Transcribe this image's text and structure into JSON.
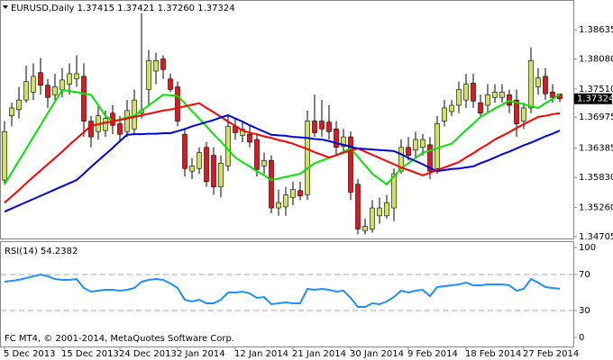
{
  "chart_data": [
    {
      "type": "candlestick",
      "title": "EURUSD,Daily  1.37415 1.37421 1.37260 1.37324",
      "categories": [
        "5 Dec 2013",
        null,
        null,
        null,
        null,
        null,
        null,
        null,
        "15 Dec 2013",
        null,
        null,
        null,
        null,
        null,
        null,
        null,
        "24 Dec 2013",
        null,
        null,
        null,
        null,
        null,
        null,
        null,
        "2 Jan 2014",
        null,
        null,
        null,
        null,
        null,
        null,
        null,
        "12 Jan 2014",
        null,
        null,
        null,
        null,
        null,
        null,
        null,
        "21 Jan 2014",
        null,
        null,
        null,
        null,
        null,
        null,
        null,
        "30 Jan 2014",
        null,
        null,
        null,
        null,
        null,
        null,
        null,
        "9 Feb 2014",
        null,
        null,
        null,
        null,
        null,
        null,
        null,
        "18 Feb 2014",
        null,
        null,
        null,
        null,
        null,
        null,
        null,
        "27 Feb 2014",
        null,
        null,
        null,
        null,
        null
      ],
      "open": [
        1.3578,
        1.37,
        1.3712,
        1.373,
        1.3745,
        1.3782,
        1.3758,
        1.374,
        1.375,
        1.376,
        1.377,
        1.3775,
        1.369,
        1.367,
        1.3672,
        1.3705,
        1.3685,
        1.367,
        1.3675,
        1.3705,
        1.375,
        1.3785,
        1.3808,
        1.377,
        1.3755,
        1.3665,
        1.3595,
        1.36,
        1.364,
        1.3625,
        1.3565,
        1.3605,
        1.368,
        1.3663,
        1.3665,
        1.3655,
        1.3605,
        1.3615,
        1.3525,
        1.3527,
        1.3545,
        1.3558,
        1.355,
        1.369,
        1.369,
        1.3688,
        1.3675,
        1.3642,
        1.366,
        1.357,
        1.3482,
        1.3485,
        1.351,
        1.351,
        1.3525,
        1.3595,
        1.364,
        1.3635,
        1.364,
        1.3645,
        1.36,
        1.369,
        1.3708,
        1.372,
        1.373,
        1.3762,
        1.3725,
        1.372,
        1.3735,
        1.3735,
        1.374,
        1.373,
        1.369,
        1.3715,
        1.3755,
        1.3775,
        1.3745,
        1.37415
      ],
      "high": [
        1.369,
        1.3725,
        1.3755,
        1.3795,
        1.38,
        1.381,
        1.377,
        1.378,
        1.379,
        1.38,
        1.3815,
        1.38,
        1.37,
        1.372,
        1.371,
        1.372,
        1.37,
        1.373,
        1.375,
        1.3895,
        1.3825,
        1.382,
        1.3815,
        1.378,
        1.3765,
        1.3675,
        1.362,
        1.364,
        1.365,
        1.364,
        1.3625,
        1.37,
        1.3695,
        1.369,
        1.368,
        1.3665,
        1.363,
        1.3625,
        1.356,
        1.3565,
        1.3575,
        1.3575,
        1.371,
        1.374,
        1.373,
        1.372,
        1.369,
        1.3675,
        1.367,
        1.358,
        1.3505,
        1.354,
        1.3545,
        1.355,
        1.36,
        1.3655,
        1.366,
        1.367,
        1.3665,
        1.366,
        1.37,
        1.373,
        1.373,
        1.3765,
        1.378,
        1.378,
        1.374,
        1.376,
        1.376,
        1.376,
        1.375,
        1.375,
        1.3725,
        1.383,
        1.379,
        1.379,
        1.376,
        1.37421
      ],
      "low": [
        1.357,
        1.368,
        1.3695,
        1.3725,
        1.373,
        1.374,
        1.3715,
        1.3725,
        1.3735,
        1.374,
        1.3755,
        1.366,
        1.364,
        1.3655,
        1.366,
        1.3665,
        1.365,
        1.366,
        1.3665,
        1.3695,
        1.372,
        1.376,
        1.377,
        1.3745,
        1.368,
        1.3585,
        1.358,
        1.359,
        1.3565,
        1.355,
        1.3545,
        1.3595,
        1.3655,
        1.365,
        1.364,
        1.3585,
        1.359,
        1.3515,
        1.351,
        1.351,
        1.353,
        1.354,
        1.354,
        1.366,
        1.366,
        1.3655,
        1.3625,
        1.363,
        1.354,
        1.3475,
        1.3475,
        1.3478,
        1.3495,
        1.3505,
        1.35,
        1.359,
        1.3615,
        1.362,
        1.3625,
        1.358,
        1.359,
        1.368,
        1.37,
        1.3705,
        1.3715,
        1.3715,
        1.37,
        1.3705,
        1.3725,
        1.3725,
        1.3705,
        1.366,
        1.3675,
        1.3705,
        1.374,
        1.373,
        1.3725,
        1.3726
      ],
      "close": [
        1.367,
        1.3715,
        1.373,
        1.3765,
        1.3775,
        1.3758,
        1.3735,
        1.3755,
        1.3768,
        1.378,
        1.378,
        1.369,
        1.366,
        1.37,
        1.3695,
        1.3682,
        1.3665,
        1.371,
        1.373,
        1.371,
        1.3805,
        1.3805,
        1.3788,
        1.375,
        1.369,
        1.36,
        1.3605,
        1.363,
        1.3575,
        1.3565,
        1.361,
        1.368,
        1.3668,
        1.3675,
        1.365,
        1.3598,
        1.3615,
        1.3525,
        1.3535,
        1.355,
        1.356,
        1.3548,
        1.369,
        1.3668,
        1.3675,
        1.367,
        1.364,
        1.366,
        1.3555,
        1.3485,
        1.349,
        1.3525,
        1.3525,
        1.3535,
        1.359,
        1.364,
        1.3625,
        1.3655,
        1.3655,
        1.3595,
        1.3685,
        1.3715,
        1.372,
        1.375,
        1.376,
        1.3728,
        1.3705,
        1.374,
        1.3745,
        1.3745,
        1.372,
        1.3685,
        1.3715,
        1.3805,
        1.3772,
        1.3742,
        1.3735,
        1.37324
      ],
      "up_color": "#cfe35e",
      "down_color": "#e8141b",
      "series": [
        {
          "color": "#00e600",
          "values": [
            1.357,
            1.3592,
            1.3615,
            1.3637,
            1.366,
            1.3682,
            1.3705,
            1.3727,
            1.3749,
            1.3747,
            1.3745,
            1.3742,
            1.374,
            1.372,
            1.37,
            1.369,
            1.3693,
            1.3697,
            1.37,
            1.371,
            1.372,
            1.373,
            1.374,
            1.3739,
            1.3738,
            1.3724,
            1.3709,
            1.3695,
            1.368,
            1.3665,
            1.3651,
            1.3636,
            1.3621,
            1.3612,
            1.3604,
            1.3595,
            1.3587,
            1.3578,
            1.3581,
            1.3584,
            1.3587,
            1.359,
            1.36,
            1.361,
            1.3615,
            1.362,
            1.3625,
            1.3632,
            1.3638,
            1.3622,
            1.3606,
            1.359,
            1.358,
            1.357,
            1.3585,
            1.36,
            1.361,
            1.362,
            1.363,
            1.3634,
            1.3638,
            1.3643,
            1.3647,
            1.366,
            1.3673,
            1.3685,
            1.3698,
            1.3706,
            1.3714,
            1.3721,
            1.3729,
            1.3725,
            1.3722,
            1.3718,
            1.3715,
            1.3724,
            1.3732,
            1.3741
          ]
        },
        {
          "color": "#ff0000",
          "values": [
            1.3535,
            1.3547,
            1.3559,
            1.3572,
            1.3584,
            1.3596,
            1.3608,
            1.362,
            1.3632,
            1.3645,
            1.3657,
            1.3669,
            1.3681,
            1.3684,
            1.3687,
            1.369,
            1.3692,
            1.3695,
            1.3698,
            1.3701,
            1.3704,
            1.3707,
            1.371,
            1.3712,
            1.3715,
            1.3718,
            1.3721,
            1.3724,
            1.3715,
            1.3707,
            1.3698,
            1.3689,
            1.3681,
            1.3672,
            1.3668,
            1.3665,
            1.3661,
            1.3658,
            1.3654,
            1.3651,
            1.3647,
            1.3642,
            1.3637,
            1.3631,
            1.3626,
            1.3621,
            1.3625,
            1.363,
            1.3634,
            1.3638,
            1.3632,
            1.3626,
            1.362,
            1.3614,
            1.3608,
            1.3602,
            1.3597,
            1.3592,
            1.3587,
            1.3592,
            1.3597,
            1.3602,
            1.3607,
            1.3612,
            1.3621,
            1.3629,
            1.3638,
            1.3646,
            1.3655,
            1.3662,
            1.3669,
            1.3677,
            1.3684,
            1.3691,
            1.3698,
            1.37,
            1.3703,
            1.3705
          ]
        },
        {
          "color": "#0000dc",
          "values": [
            1.3518,
            1.3524,
            1.353,
            1.3536,
            1.3542,
            1.3548,
            1.3554,
            1.356,
            1.3566,
            1.3572,
            1.3578,
            1.359,
            1.3603,
            1.3615,
            1.3627,
            1.3639,
            1.3652,
            1.3664,
            1.3665,
            1.3665,
            1.3666,
            1.3666,
            1.3667,
            1.3667,
            1.3671,
            1.3675,
            1.368,
            1.3684,
            1.3688,
            1.3692,
            1.3697,
            1.3701,
            1.3695,
            1.3689,
            1.3682,
            1.3676,
            1.367,
            1.3664,
            1.3663,
            1.3662,
            1.366,
            1.3659,
            1.3658,
            1.3656,
            1.3655,
            1.3652,
            1.3648,
            1.3645,
            1.3641,
            1.3638,
            1.3637,
            1.3636,
            1.3635,
            1.3634,
            1.3633,
            1.3627,
            1.362,
            1.3614,
            1.3608,
            1.3601,
            1.3595,
            1.3597,
            1.3599,
            1.36,
            1.3602,
            1.3604,
            1.361,
            1.3615,
            1.3621,
            1.3627,
            1.3632,
            1.3638,
            1.3644,
            1.3649,
            1.3655,
            1.3661,
            1.3666,
            1.3672
          ]
        }
      ],
      "ylim": [
        1.3467,
        1.392
      ],
      "yticks": [
        1.38635,
        {
          "value": 1.3808,
          "label": "1.38080"
        },
        {
          "value": 1.3751,
          "label": "1.37510"
        },
        1.36975,
        1.36385,
        {
          "value": 1.3583,
          "label": "1.35830"
        },
        {
          "value": 1.3526,
          "label": "1.35260"
        },
        1.34705
      ]
    },
    {
      "type": "line",
      "title": "RSI(14) 54.2382",
      "annotation": "FC MT4, © 2001-2014, MetaQuotes Software Corp.",
      "series": [
        {
          "color": "#1e8fff",
          "values": [
            62,
            63,
            64,
            66,
            68,
            70,
            68,
            65,
            64,
            64,
            65,
            55,
            51,
            52,
            53,
            53,
            52,
            53,
            55,
            62,
            64,
            65,
            64,
            60,
            55,
            42,
            40,
            42,
            38,
            38,
            42,
            50,
            50,
            51,
            49,
            44,
            45,
            37,
            38,
            39,
            38,
            38,
            54,
            53,
            54,
            53,
            51,
            52,
            44,
            34,
            34,
            38,
            37,
            40,
            45,
            52,
            50,
            52,
            53,
            46,
            56,
            57,
            58,
            59,
            61,
            58,
            58,
            59,
            59,
            59,
            58,
            52,
            54,
            65,
            61,
            56,
            55,
            54.2382
          ]
        }
      ],
      "ylim": [
        -10,
        107
      ],
      "yticks": [
        0,
        30,
        70,
        100
      ],
      "levels": [
        30,
        70
      ]
    }
  ]
}
